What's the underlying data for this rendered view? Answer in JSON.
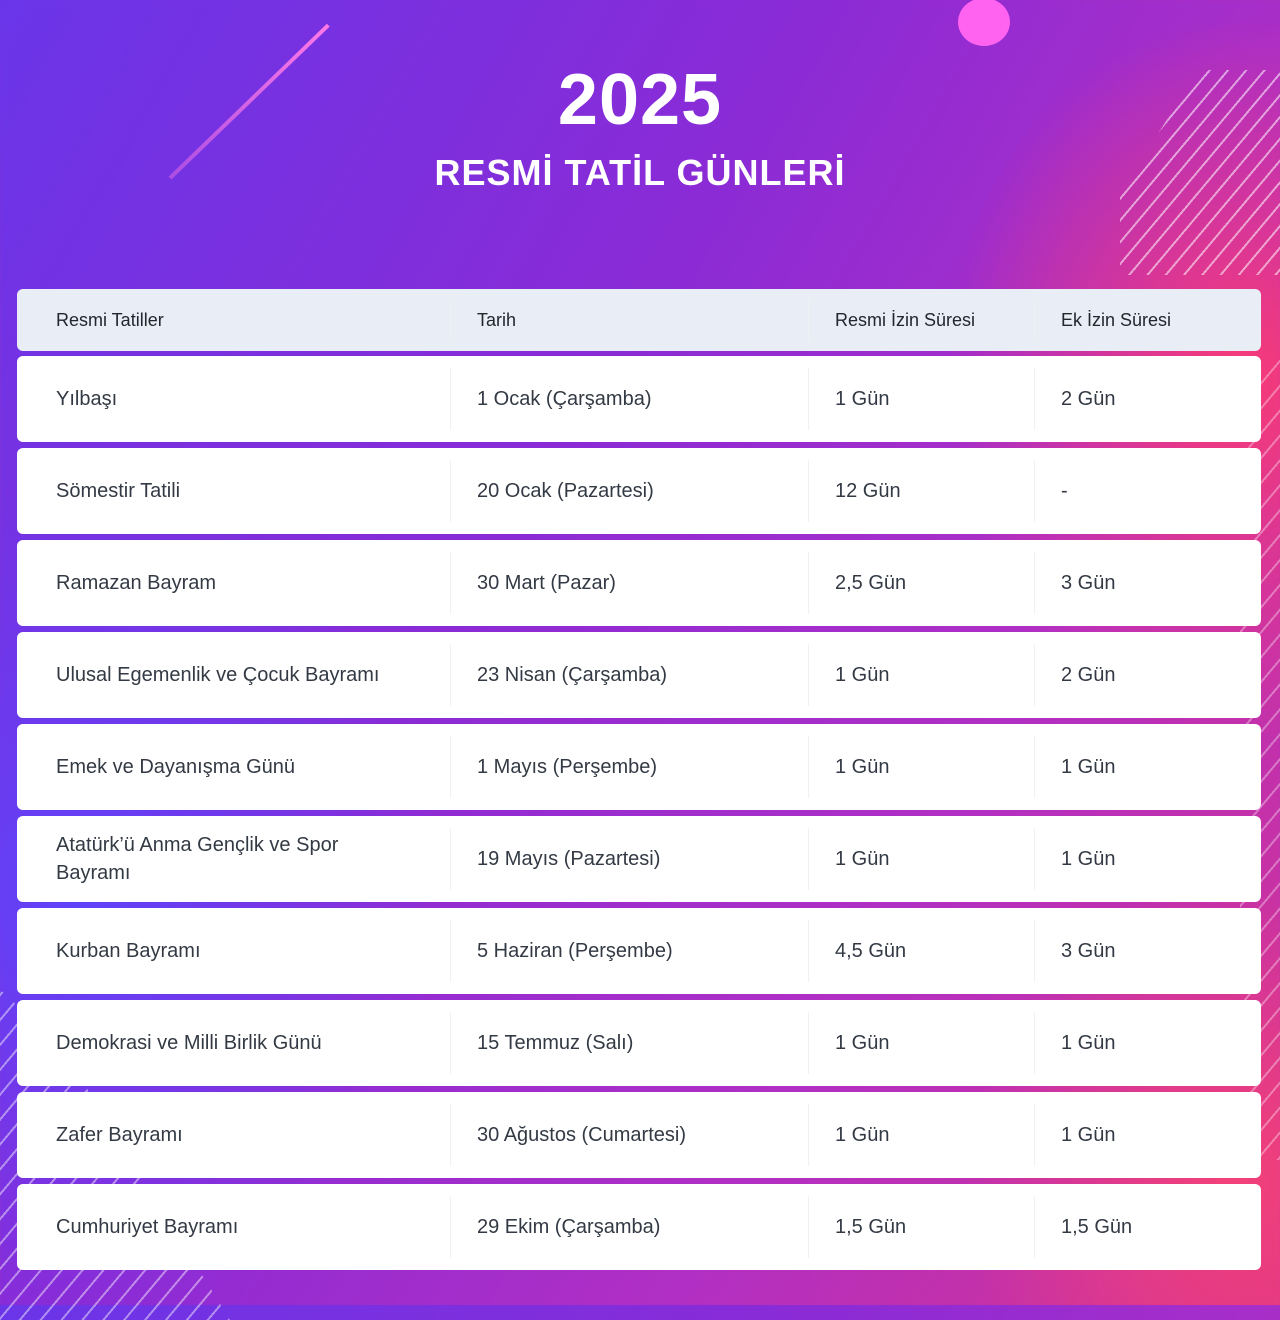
{
  "heading": {
    "year": "2025",
    "subtitle": "RESMİ TATİL GÜNLERİ"
  },
  "table": {
    "columns": [
      "Resmi Tatiller",
      "Tarih",
      "Resmi İzin Süresi",
      "Ek İzin Süresi"
    ],
    "rows": [
      {
        "name": "Yılbaşı",
        "date": "1 Ocak (Çarşamba)",
        "official": "1 Gün",
        "extra": "2 Gün"
      },
      {
        "name": "Sömestir Tatili",
        "date": "20 Ocak (Pazartesi)",
        "official": "12 Gün",
        "extra": "-"
      },
      {
        "name": "Ramazan Bayram",
        "date": "30 Mart (Pazar)",
        "official": "2,5 Gün",
        "extra": "3 Gün"
      },
      {
        "name": "Ulusal Egemenlik ve Çocuk Bayramı",
        "date": "23 Nisan (Çarşamba)",
        "official": "1 Gün",
        "extra": "2 Gün"
      },
      {
        "name": "Emek ve Dayanışma Günü",
        "date": "1 Mayıs (Perşembe)",
        "official": "1 Gün",
        "extra": "1 Gün"
      },
      {
        "name": "Atatürk’ü Anma Gençlik ve Spor Bayramı",
        "date": "19 Mayıs (Pazartesi)",
        "official": "1 Gün",
        "extra": "1 Gün"
      },
      {
        "name": "Kurban Bayramı",
        "date": "5 Haziran (Perşembe)",
        "official": "4,5 Gün",
        "extra": "3 Gün"
      },
      {
        "name": "Demokrasi ve Milli Birlik Günü",
        "date": "15 Temmuz (Salı)",
        "official": "1 Gün",
        "extra": "1 Gün"
      },
      {
        "name": "Zafer Bayramı",
        "date": "30 Ağustos (Cumartesi)",
        "official": "1 Gün",
        "extra": "1 Gün"
      },
      {
        "name": "Cumhuriyet Bayramı",
        "date": "29 Ekim (Çarşamba)",
        "official": "1,5 Gün",
        "extra": "1,5 Gün"
      }
    ]
  }
}
